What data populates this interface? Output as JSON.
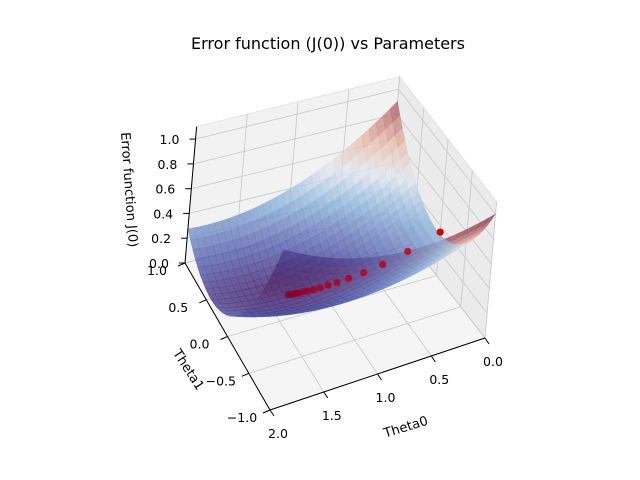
{
  "chart_data": {
    "type": "surface3d",
    "title": "Error function (J(0)) vs Parameters",
    "xlabel": "Theta0",
    "ylabel": "Theta1",
    "zlabel": "Error function J(0)",
    "xlim": [
      0.0,
      2.0
    ],
    "ylim": [
      -1.0,
      1.0
    ],
    "zlim": [
      0.0,
      1.0
    ],
    "x_ticks": [
      "0.0",
      "0.5",
      "1.0",
      "1.5",
      "2.0"
    ],
    "y_ticks": [
      "−1.0",
      "−0.5",
      "0.0",
      "0.5",
      "1.0"
    ],
    "z_ticks": [
      "0.0",
      "0.2",
      "0.4",
      "0.6",
      "0.8",
      "1.0"
    ],
    "grid": true,
    "colormap": "twilight_shifted",
    "surface": {
      "minimum": {
        "theta0": 1.4,
        "theta1": 0.3,
        "J": 0.0
      },
      "corner_values": {
        "theta0_0_theta1_-1": 1.08,
        "theta0_0_theta1_1": 0.42,
        "theta0_2_theta1_-1": 0.55,
        "theta0_2_theta1_1": 0.83
      }
    },
    "descent_path": {
      "color": "#cc0000",
      "points": [
        {
          "theta0": 0.0,
          "theta1": 0.0,
          "J": 0.35
        },
        {
          "theta0": 0.27,
          "theta1": 0.06,
          "J": 0.23
        },
        {
          "theta0": 0.48,
          "theta1": 0.11,
          "J": 0.15
        },
        {
          "theta0": 0.64,
          "theta1": 0.15,
          "J": 0.1
        },
        {
          "theta0": 0.77,
          "theta1": 0.18,
          "J": 0.07
        },
        {
          "theta0": 0.87,
          "theta1": 0.2,
          "J": 0.05
        },
        {
          "theta0": 0.95,
          "theta1": 0.21,
          "J": 0.04
        },
        {
          "theta0": 1.02,
          "theta1": 0.22,
          "J": 0.03
        },
        {
          "theta0": 1.08,
          "theta1": 0.23,
          "J": 0.025
        },
        {
          "theta0": 1.13,
          "theta1": 0.24,
          "J": 0.02
        },
        {
          "theta0": 1.17,
          "theta1": 0.25,
          "J": 0.018
        },
        {
          "theta0": 1.21,
          "theta1": 0.25,
          "J": 0.016
        },
        {
          "theta0": 1.24,
          "theta1": 0.26,
          "J": 0.015
        },
        {
          "theta0": 1.27,
          "theta1": 0.26,
          "J": 0.014
        },
        {
          "theta0": 1.3,
          "theta1": 0.27,
          "J": 0.013
        }
      ]
    }
  }
}
